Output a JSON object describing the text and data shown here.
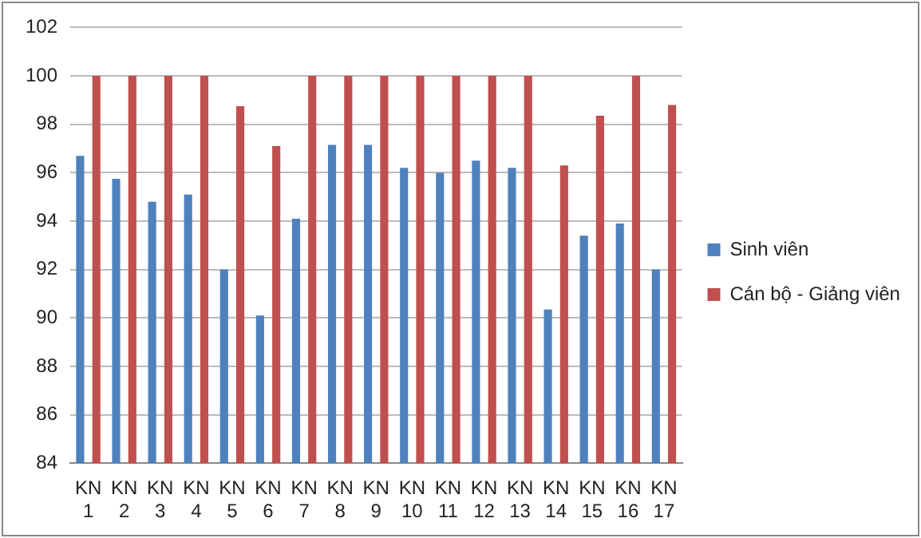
{
  "chart_data": {
    "type": "bar",
    "categories": [
      "KN 1",
      "KN 2",
      "KN 3",
      "KN 4",
      "KN 5",
      "KN 6",
      "KN 7",
      "KN 8",
      "KN 9",
      "KN 10",
      "KN 11",
      "KN 12",
      "KN 13",
      "KN 14",
      "KN 15",
      "KN 16",
      "KN 17"
    ],
    "series": [
      {
        "name": "Sinh viên",
        "color": "#4f81bd",
        "values": [
          96.7,
          95.75,
          94.8,
          95.1,
          92.0,
          90.1,
          94.1,
          97.15,
          97.15,
          96.2,
          96.0,
          96.5,
          96.2,
          90.35,
          93.4,
          93.9,
          92.0
        ]
      },
      {
        "name": "Cán bộ - Giảng viên",
        "color": "#c0504d",
        "values": [
          100,
          100,
          100,
          100,
          98.75,
          97.1,
          100,
          100,
          100,
          100,
          100,
          100,
          100,
          96.3,
          98.35,
          100,
          98.8
        ]
      }
    ],
    "ylim": [
      84,
      102
    ],
    "yticks": [
      84,
      86,
      88,
      90,
      92,
      94,
      96,
      98,
      100,
      102
    ],
    "grid": "y",
    "legend": "right"
  }
}
